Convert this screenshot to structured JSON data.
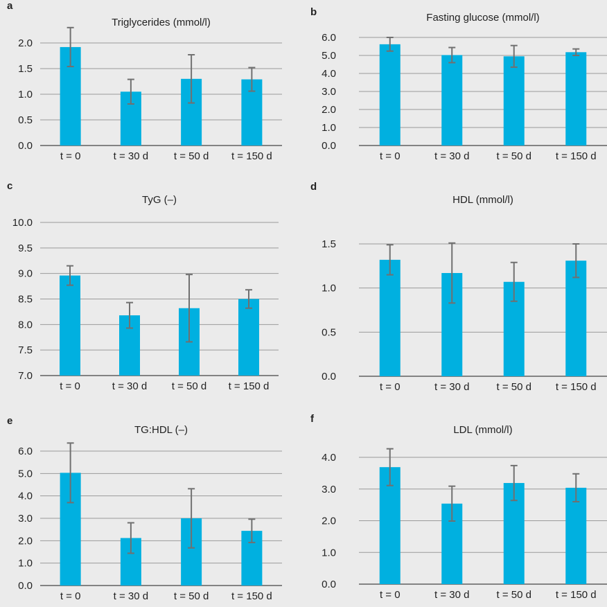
{
  "chart_data": [
    {
      "panel": "a",
      "type": "bar",
      "title": "Triglycerides (mmol/l)",
      "categories": [
        "t = 0",
        "t = 30 d",
        "t = 50 d",
        "t = 150 d"
      ],
      "values": [
        1.92,
        1.05,
        1.3,
        1.29
      ],
      "error": [
        0.38,
        0.24,
        0.47,
        0.23
      ],
      "yticks": [
        "0.0",
        "0.5",
        "1.0",
        "1.5",
        "2.0"
      ],
      "ylim": [
        0,
        2.0
      ],
      "color": "#00b0e0",
      "grid": true
    },
    {
      "panel": "b",
      "type": "bar",
      "title": "Fasting glucose (mmol/l)",
      "categories": [
        "t = 0",
        "t = 30 d",
        "t = 50 d",
        "t = 150 d"
      ],
      "values": [
        5.62,
        5.02,
        4.95,
        5.18
      ],
      "error": [
        0.38,
        0.42,
        0.6,
        0.18
      ],
      "yticks": [
        "0.0",
        "1.0",
        "2.0",
        "3.0",
        "4.0",
        "5.0",
        "6.0"
      ],
      "ylim": [
        0,
        6.0
      ],
      "color": "#00b0e0",
      "grid": true
    },
    {
      "panel": "c",
      "type": "bar",
      "title": "TyG (–)",
      "categories": [
        "t = 0",
        "t = 30 d",
        "t = 50 d",
        "t = 150 d"
      ],
      "values": [
        8.96,
        8.18,
        8.32,
        8.5
      ],
      "error": [
        0.19,
        0.25,
        0.66,
        0.18
      ],
      "yticks": [
        "7.0",
        "7.5",
        "8.0",
        "8.5",
        "9.0",
        "9.5",
        "10.0"
      ],
      "ylim": [
        7.0,
        10.0
      ],
      "color": "#00b0e0",
      "grid": true
    },
    {
      "panel": "d",
      "type": "bar",
      "title": "HDL (mmol/l)",
      "categories": [
        "t = 0",
        "t = 30 d",
        "t = 50 d",
        "t = 150 d"
      ],
      "values": [
        1.32,
        1.17,
        1.07,
        1.31
      ],
      "error": [
        0.17,
        0.34,
        0.22,
        0.19
      ],
      "yticks": [
        "0.0",
        "0.5",
        "1.0",
        "1.5"
      ],
      "ylim": [
        0,
        1.5
      ],
      "color": "#00b0e0",
      "grid": true
    },
    {
      "panel": "e",
      "type": "bar",
      "title": "TG:HDL (–)",
      "categories": [
        "t = 0",
        "t = 30 d",
        "t = 50 d",
        "t = 150 d"
      ],
      "values": [
        5.03,
        2.12,
        3.0,
        2.44
      ],
      "error": [
        1.33,
        0.68,
        1.32,
        0.52
      ],
      "yticks": [
        "0.0",
        "1.0",
        "2.0",
        "3.0",
        "4.0",
        "5.0",
        "6.0"
      ],
      "ylim": [
        0,
        6.0
      ],
      "color": "#00b0e0",
      "grid": true
    },
    {
      "panel": "f",
      "type": "bar",
      "title": "LDL (mmol/l)",
      "categories": [
        "t = 0",
        "t = 30 d",
        "t = 50 d",
        "t = 150 d"
      ],
      "values": [
        3.69,
        2.54,
        3.19,
        3.04
      ],
      "error": [
        0.58,
        0.55,
        0.55,
        0.44
      ],
      "yticks": [
        "0.0",
        "1.0",
        "2.0",
        "3.0",
        "4.0"
      ],
      "ylim": [
        0,
        4.0
      ],
      "color": "#00b0e0",
      "grid": true
    }
  ]
}
